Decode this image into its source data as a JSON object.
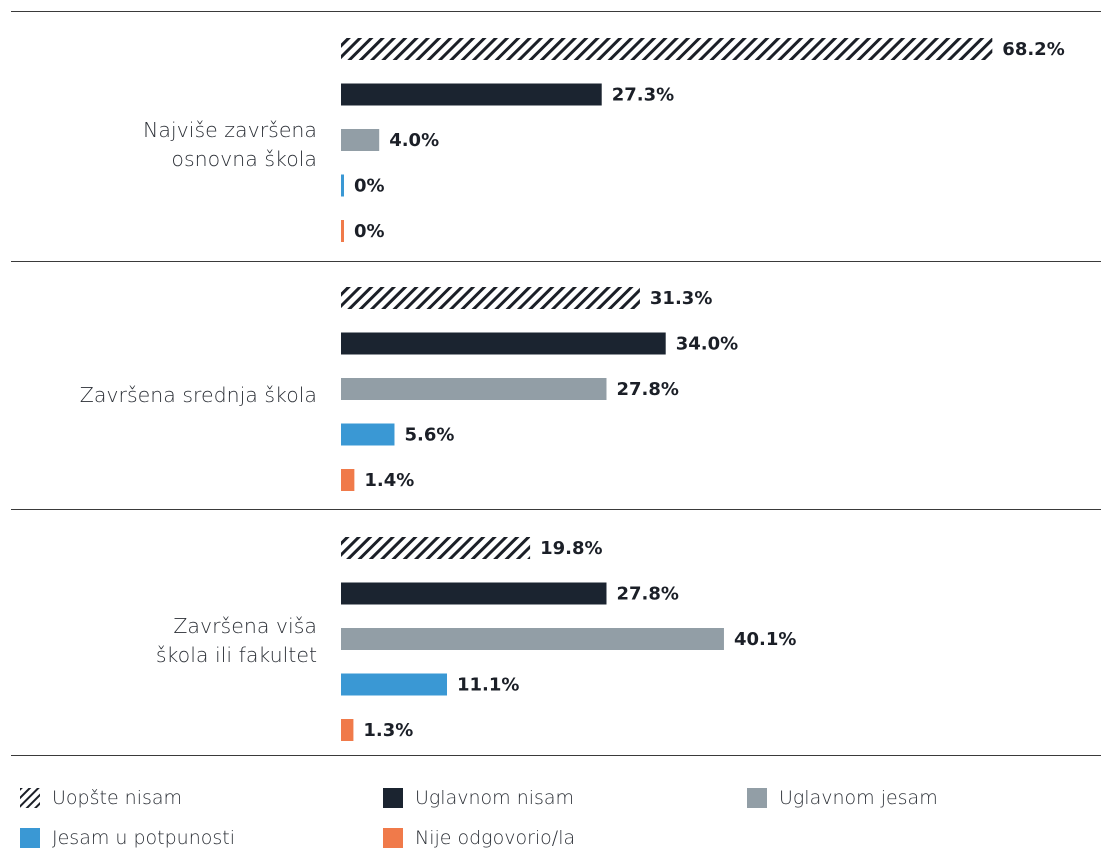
{
  "chart_data": {
    "type": "bar",
    "orientation": "horizontal",
    "categories": [
      "Najviše završena\nosnovna škola",
      "Završena srednja škola",
      "Završena viša\nškola ili fakultet"
    ],
    "series": [
      {
        "name": "Uopšte nisam",
        "pattern": "hatched",
        "color": "#1b1f27",
        "values": [
          68.2,
          31.3,
          19.8
        ],
        "labels": [
          "68.2%",
          "31.3%",
          "19.8%"
        ]
      },
      {
        "name": "Uglavnom nisam",
        "color": "#1b2430",
        "values": [
          27.3,
          34.0,
          27.8
        ],
        "labels": [
          "27.3%",
          "34.0%",
          "27.8%"
        ]
      },
      {
        "name": "Uglavnom jesam",
        "color": "#929ea6",
        "values": [
          4.0,
          27.8,
          40.1
        ],
        "labels": [
          "4.0%",
          "27.8%",
          "40.1%"
        ]
      },
      {
        "name": "Jesam u potpunosti",
        "color": "#3a98d4",
        "values": [
          0,
          5.6,
          11.1
        ],
        "labels": [
          "0%",
          "5.6%",
          "11.1%"
        ]
      },
      {
        "name": "Nije odgovorio/la",
        "color": "#f07a4a",
        "values": [
          0,
          1.4,
          1.3
        ],
        "labels": [
          "0%",
          "1.4%",
          "1.3%"
        ]
      }
    ],
    "legend_position": "bottom",
    "grid": false
  }
}
